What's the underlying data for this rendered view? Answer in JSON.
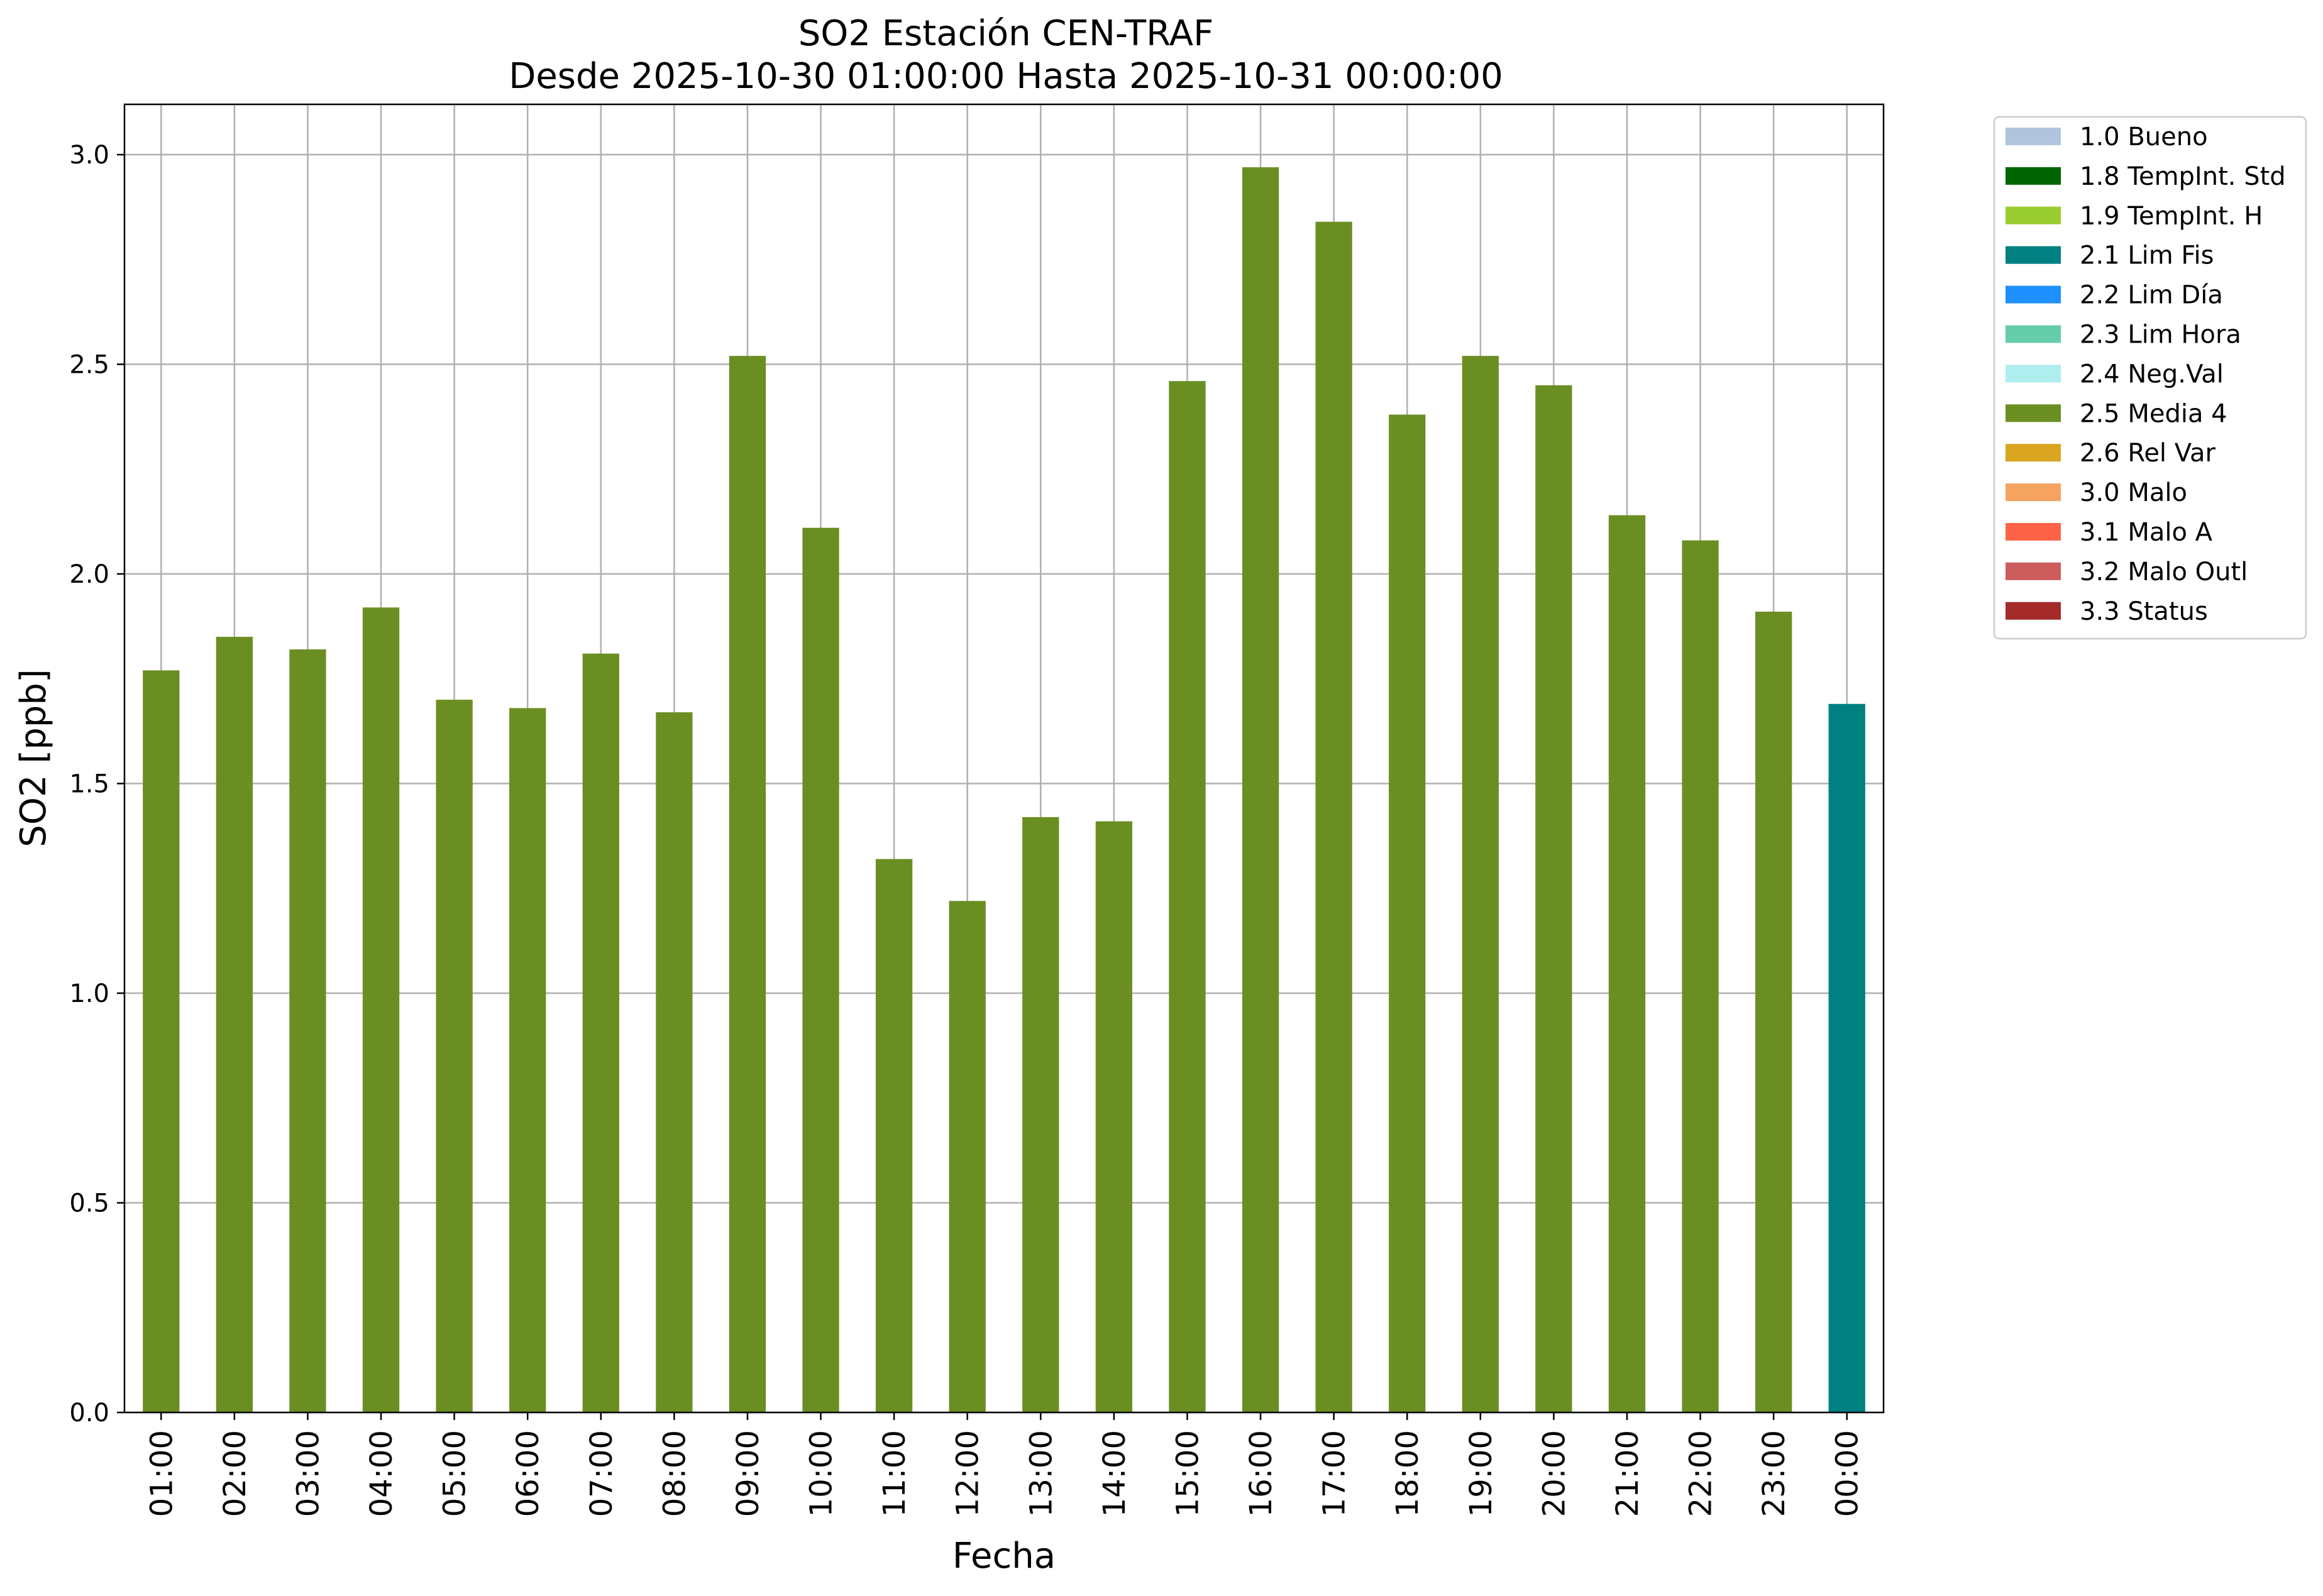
{
  "chart_data": {
    "type": "bar",
    "title": "SO2 Estación CEN-TRAF",
    "subtitle": "Desde 2025-10-30 01:00:00 Hasta 2025-10-31 00:00:00",
    "xlabel": "Fecha",
    "ylabel": "SO2 [ppb]",
    "ylim": [
      0,
      3.12
    ],
    "yticks": [
      "0.0",
      "0.5",
      "1.0",
      "1.5",
      "2.0",
      "2.5",
      "3.0"
    ],
    "grid": true,
    "legend_position": "outside-top-right",
    "categories": [
      "01:00",
      "02:00",
      "03:00",
      "04:00",
      "05:00",
      "06:00",
      "07:00",
      "08:00",
      "09:00",
      "10:00",
      "11:00",
      "12:00",
      "13:00",
      "14:00",
      "15:00",
      "16:00",
      "17:00",
      "18:00",
      "19:00",
      "20:00",
      "21:00",
      "22:00",
      "23:00",
      "00:00"
    ],
    "values": [
      1.77,
      1.85,
      1.82,
      1.92,
      1.7,
      1.68,
      1.81,
      1.67,
      2.52,
      2.11,
      1.32,
      1.22,
      1.42,
      1.41,
      2.46,
      2.97,
      2.84,
      2.38,
      2.52,
      2.45,
      2.14,
      2.08,
      1.91,
      1.69
    ],
    "flags": [
      "2.5 Media 4",
      "2.5 Media 4",
      "2.5 Media 4",
      "2.5 Media 4",
      "2.5 Media 4",
      "2.5 Media 4",
      "2.5 Media 4",
      "2.5 Media 4",
      "2.5 Media 4",
      "2.5 Media 4",
      "2.5 Media 4",
      "2.5 Media 4",
      "2.5 Media 4",
      "2.5 Media 4",
      "2.5 Media 4",
      "2.5 Media 4",
      "2.5 Media 4",
      "2.5 Media 4",
      "2.5 Media 4",
      "2.5 Media 4",
      "2.5 Media 4",
      "2.5 Media 4",
      "2.5 Media 4",
      "2.1 Lim Fis"
    ],
    "legend": [
      {
        "label": "1.0 Bueno",
        "color": "#b0c4de"
      },
      {
        "label": "1.8 TempInt. Std",
        "color": "#006400"
      },
      {
        "label": "1.9 TempInt. H",
        "color": "#9acd32"
      },
      {
        "label": "2.1 Lim Fis",
        "color": "#008080"
      },
      {
        "label": "2.2 Lim Día",
        "color": "#1e90ff"
      },
      {
        "label": "2.3 Lim Hora",
        "color": "#66cdaa"
      },
      {
        "label": "2.4 Neg.Val",
        "color": "#afeeee"
      },
      {
        "label": "2.5 Media 4",
        "color": "#6b8e23"
      },
      {
        "label": "2.6 Rel Var",
        "color": "#daa520"
      },
      {
        "label": "3.0 Malo",
        "color": "#f4a460"
      },
      {
        "label": "3.1 Malo A",
        "color": "#ff6347"
      },
      {
        "label": "3.2 Malo Outl",
        "color": "#cd5c5c"
      },
      {
        "label": "3.3 Status",
        "color": "#a52a2a"
      }
    ]
  }
}
